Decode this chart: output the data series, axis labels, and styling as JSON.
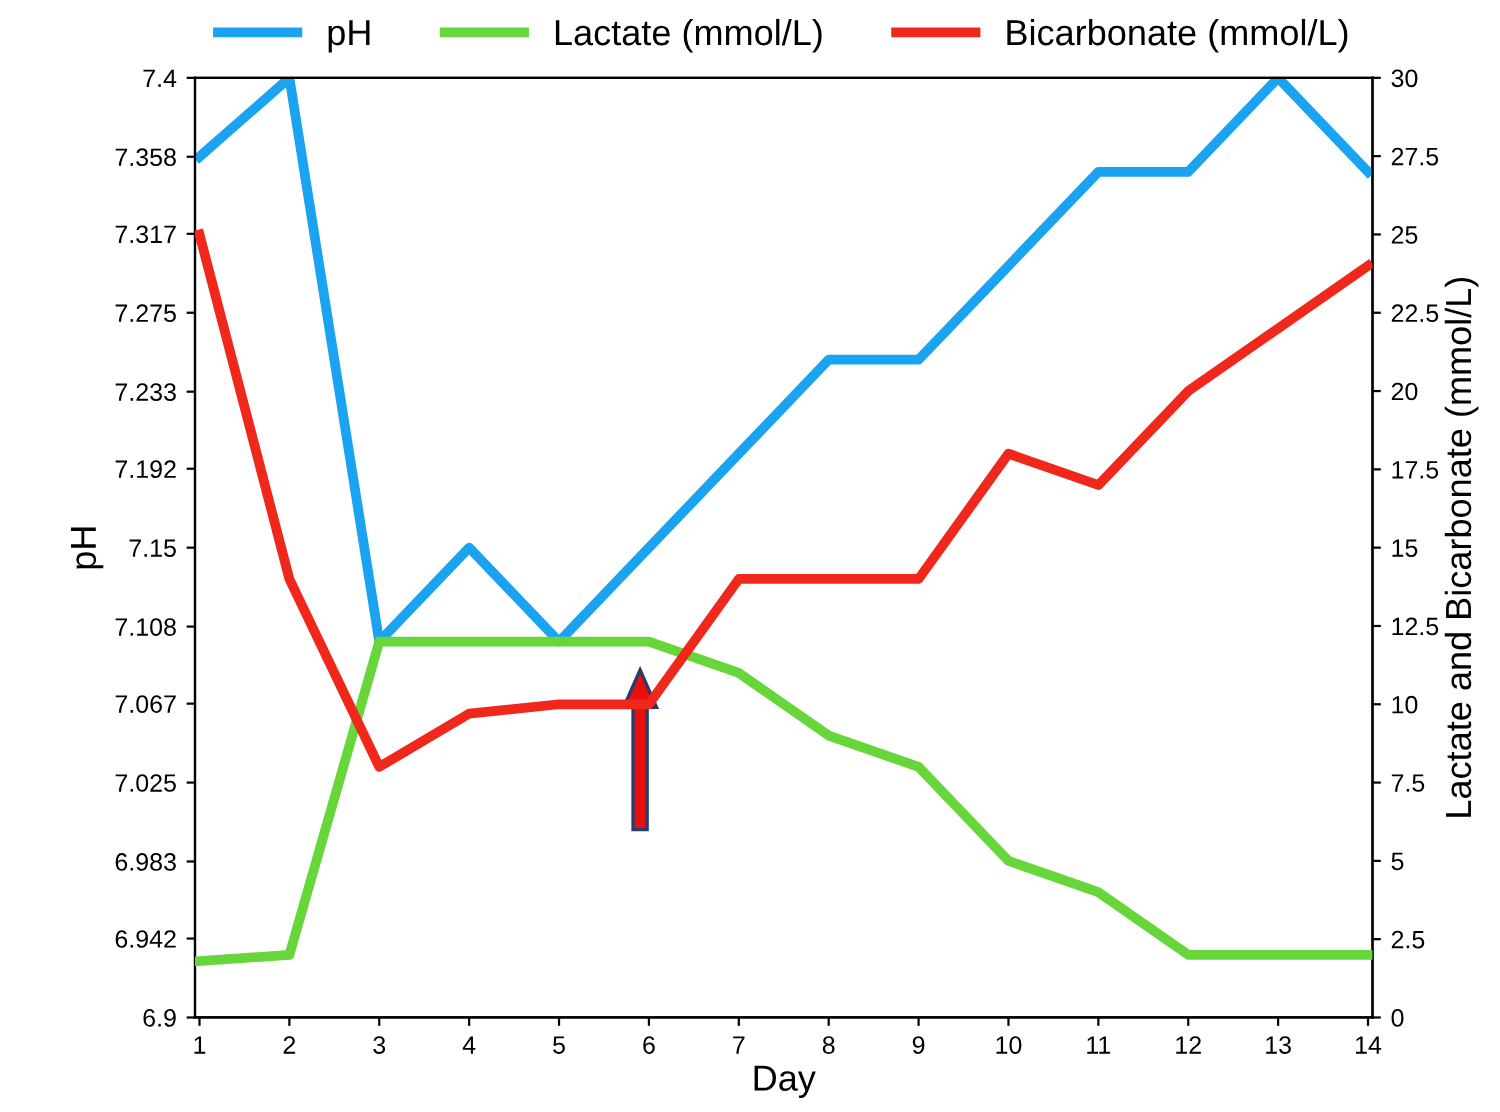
{
  "chart_data": {
    "type": "line",
    "xlabel": "Day",
    "ylabel": "pH",
    "y2label": "Lactate and Bicarbonate (mmol/L)",
    "categories": [
      "1",
      "2",
      "3",
      "4",
      "5",
      "6",
      "7",
      "8",
      "9",
      "10",
      "11",
      "12",
      "13",
      "14"
    ],
    "series": [
      {
        "name": "pH",
        "color": "#1aa3f0",
        "values": [
          7.358,
          7.4,
          7.1,
          7.15,
          7.1,
          7.15,
          7.2,
          7.25,
          7.25,
          7.3,
          7.35,
          7.35,
          7.4,
          7.35
        ]
      },
      {
        "name": "Lactate (mmol/L)",
        "color": "#66d63a",
        "axis": "y2",
        "values": [
          1.8,
          2,
          12,
          12,
          12,
          12,
          11,
          9,
          8,
          5,
          4,
          2,
          2,
          2
        ]
      },
      {
        "name": "Bicarbonate (mmol/L)",
        "color": "#f0281c",
        "axis": "y2",
        "values": [
          25,
          14,
          8,
          9.7,
          10,
          10,
          14,
          14,
          14,
          18,
          17,
          20,
          22,
          24
        ]
      }
    ],
    "ylim": [
      6.9,
      7.4
    ],
    "yticks": [
      6.9,
      6.942,
      6.983,
      7.025,
      7.067,
      7.108,
      7.15,
      7.192,
      7.233,
      7.275,
      7.317,
      7.358,
      7.4
    ],
    "y2lim": [
      0,
      30
    ],
    "y2ticks": [
      0,
      2.5,
      5,
      7.5,
      10,
      12.5,
      15,
      17.5,
      20,
      22.5,
      25,
      27.5,
      30
    ],
    "legend": "top",
    "grid": false,
    "marker": "none",
    "line_style": "solid"
  }
}
